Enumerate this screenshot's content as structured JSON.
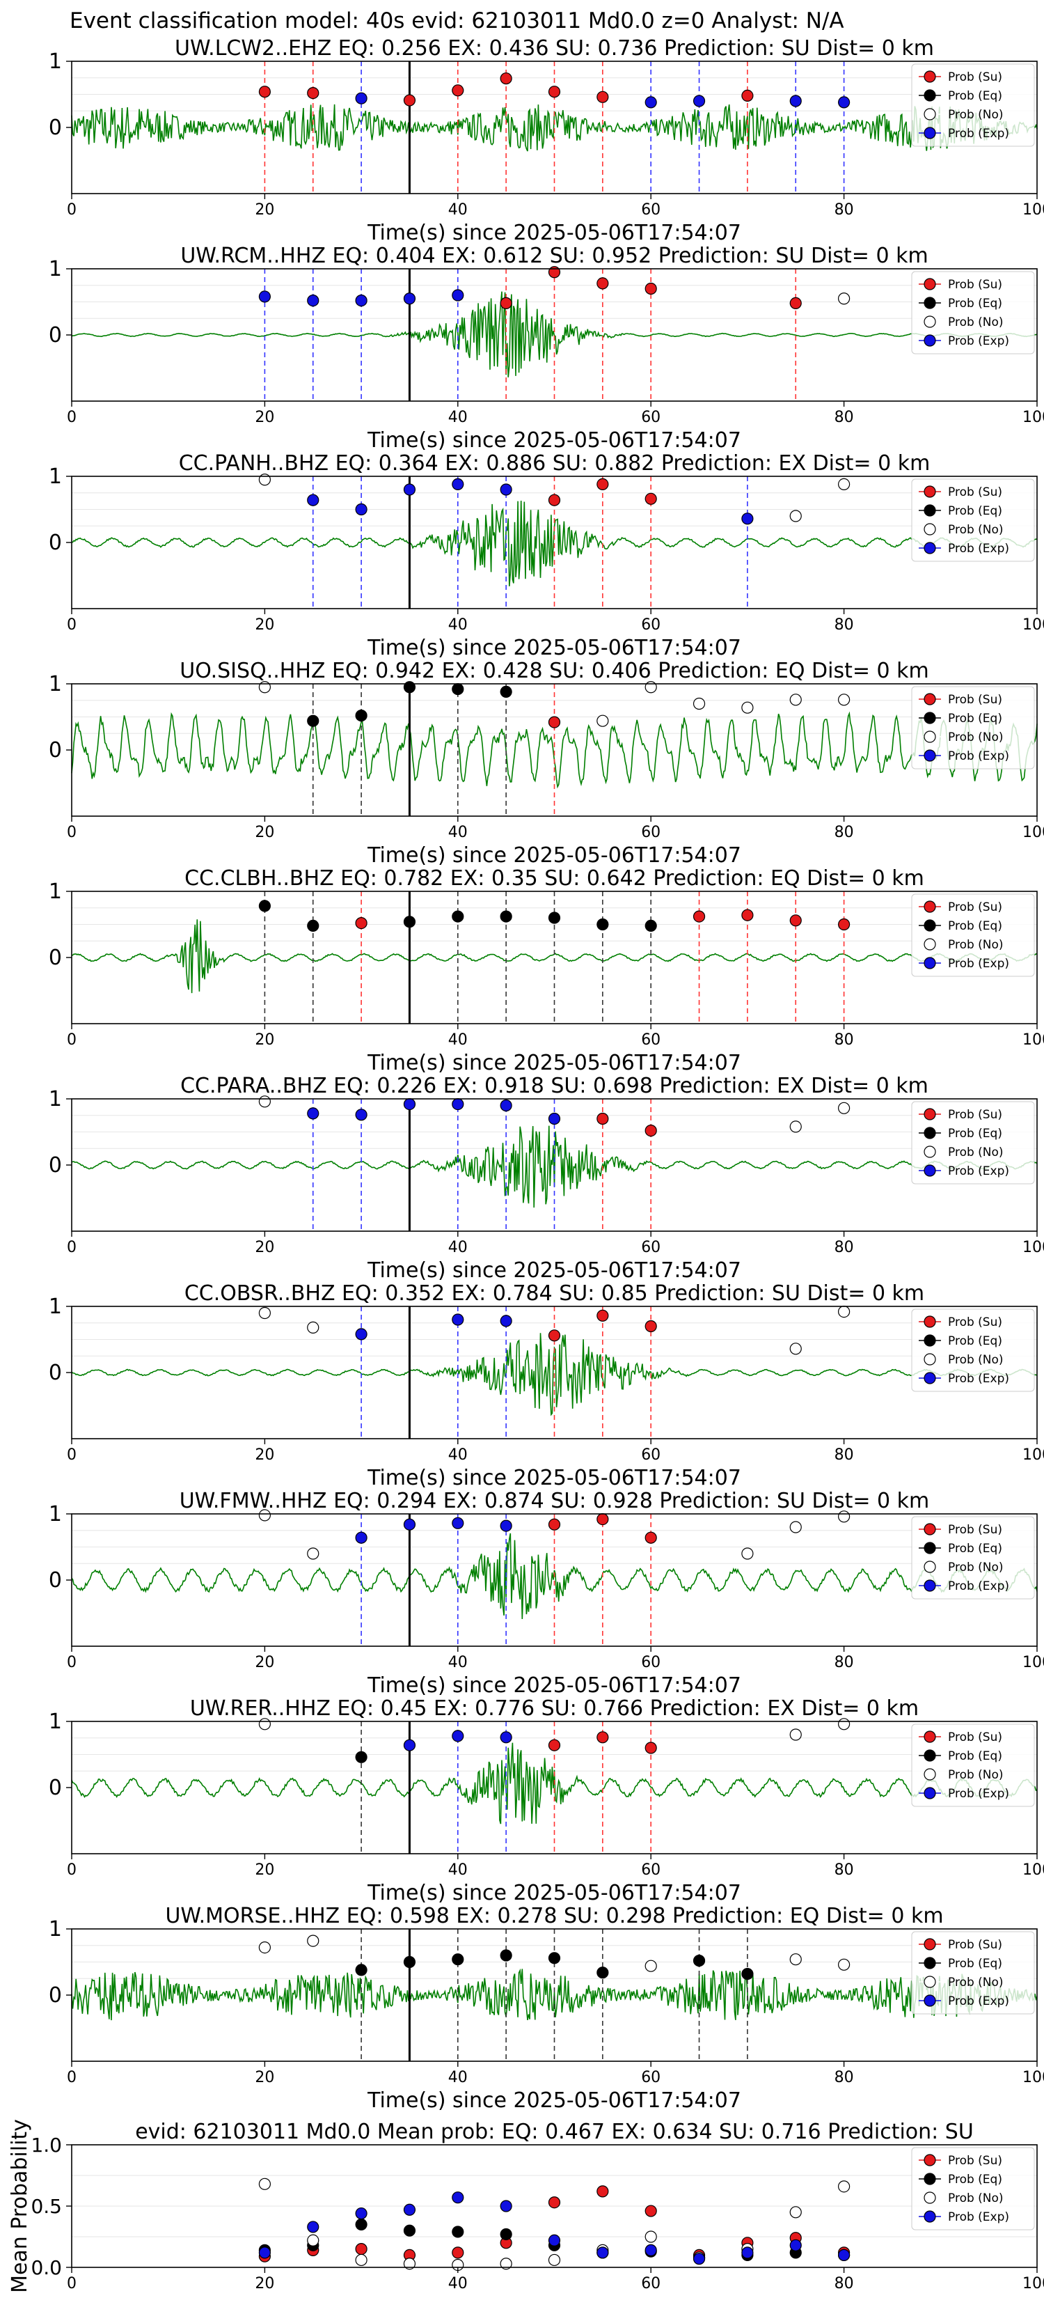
{
  "figure_title": "Event classification model: 40s evid: 62103011 Md0.0 z=0 Analyst: N/A",
  "legend_labels": [
    "Prob (Su)",
    "Prob (Eq)",
    "Prob (No)",
    "Prob (Exp)"
  ],
  "colors": {
    "su": "#e41a1c",
    "eq": "#000000",
    "no": "#ffffff",
    "exp": "#1010e0",
    "trace": "#007f00",
    "grid": "#e6e6e6"
  },
  "chart_data": [
    {
      "type": "scatter",
      "title": "UW.LCW2..EHZ   EQ: 0.256  EX: 0.436  SU: 0.736   Prediction: SU    Dist= 0 km",
      "xlabel": "Time(s) since 2025-05-06T17:54:07",
      "ylabel": "",
      "xlim": [
        0,
        100
      ],
      "ylim": [
        -1,
        1
      ],
      "yticks": [
        "1",
        "0"
      ],
      "xticks": [
        "0",
        "20",
        "40",
        "60",
        "80",
        "100"
      ],
      "event_line_x": 35,
      "trace": {
        "amplitude": 0.45,
        "style": "noisy",
        "burst_center": 40,
        "burst_width": 0
      },
      "points": [
        {
          "x": 20,
          "y": 0.54,
          "class": "su"
        },
        {
          "x": 25,
          "y": 0.52,
          "class": "su"
        },
        {
          "x": 30,
          "y": 0.44,
          "class": "exp"
        },
        {
          "x": 35,
          "y": 0.41,
          "class": "su"
        },
        {
          "x": 40,
          "y": 0.56,
          "class": "su"
        },
        {
          "x": 45,
          "y": 0.74,
          "class": "su"
        },
        {
          "x": 50,
          "y": 0.54,
          "class": "su"
        },
        {
          "x": 55,
          "y": 0.46,
          "class": "su"
        },
        {
          "x": 60,
          "y": 0.38,
          "class": "exp"
        },
        {
          "x": 65,
          "y": 0.4,
          "class": "exp"
        },
        {
          "x": 70,
          "y": 0.48,
          "class": "su"
        },
        {
          "x": 75,
          "y": 0.4,
          "class": "exp"
        },
        {
          "x": 80,
          "y": 0.38,
          "class": "exp"
        }
      ]
    },
    {
      "type": "scatter",
      "title": "UW.RCM..HHZ   EQ: 0.404  EX: 0.612  SU: 0.952   Prediction: SU    Dist= 0 km",
      "xlabel": "Time(s) since 2025-05-06T17:54:07",
      "ylabel": "",
      "xlim": [
        0,
        100
      ],
      "ylim": [
        -1,
        1
      ],
      "yticks": [
        "1",
        "0"
      ],
      "xticks": [
        "0",
        "20",
        "40",
        "60",
        "80",
        "100"
      ],
      "event_line_x": 35,
      "trace": {
        "amplitude": 0.02,
        "style": "burst",
        "burst_center": 45,
        "burst_width": 6
      },
      "points": [
        {
          "x": 20,
          "y": 0.58,
          "class": "exp"
        },
        {
          "x": 25,
          "y": 0.52,
          "class": "exp"
        },
        {
          "x": 30,
          "y": 0.52,
          "class": "exp"
        },
        {
          "x": 35,
          "y": 0.55,
          "class": "exp"
        },
        {
          "x": 40,
          "y": 0.6,
          "class": "exp"
        },
        {
          "x": 45,
          "y": 0.48,
          "class": "su"
        },
        {
          "x": 50,
          "y": 0.95,
          "class": "su"
        },
        {
          "x": 55,
          "y": 0.78,
          "class": "su"
        },
        {
          "x": 60,
          "y": 0.7,
          "class": "su"
        },
        {
          "x": 75,
          "y": 0.48,
          "class": "su"
        },
        {
          "x": 80,
          "y": 0.55,
          "class": "no"
        }
      ]
    },
    {
      "type": "scatter",
      "title": "CC.PANH..BHZ   EQ: 0.364  EX: 0.886  SU: 0.882   Prediction: EX    Dist= 0 km",
      "xlabel": "Time(s) since 2025-05-06T17:54:07",
      "ylabel": "",
      "xlim": [
        0,
        100
      ],
      "ylim": [
        -1,
        1
      ],
      "yticks": [
        "1",
        "0"
      ],
      "xticks": [
        "0",
        "20",
        "40",
        "60",
        "80",
        "100"
      ],
      "event_line_x": 35,
      "trace": {
        "amplitude": 0.06,
        "style": "burst",
        "burst_center": 46,
        "burst_width": 6
      },
      "points": [
        {
          "x": 20,
          "y": 0.95,
          "class": "no"
        },
        {
          "x": 25,
          "y": 0.64,
          "class": "exp"
        },
        {
          "x": 30,
          "y": 0.5,
          "class": "exp"
        },
        {
          "x": 35,
          "y": 0.8,
          "class": "exp"
        },
        {
          "x": 40,
          "y": 0.88,
          "class": "exp"
        },
        {
          "x": 45,
          "y": 0.8,
          "class": "exp"
        },
        {
          "x": 50,
          "y": 0.64,
          "class": "su"
        },
        {
          "x": 55,
          "y": 0.88,
          "class": "su"
        },
        {
          "x": 60,
          "y": 0.66,
          "class": "su"
        },
        {
          "x": 70,
          "y": 0.36,
          "class": "exp"
        },
        {
          "x": 75,
          "y": 0.4,
          "class": "no"
        },
        {
          "x": 80,
          "y": 0.88,
          "class": "no"
        }
      ]
    },
    {
      "type": "scatter",
      "title": "UO.SISQ..HHZ   EQ: 0.942  EX: 0.428  SU: 0.406   Prediction: EQ    Dist= 0 km",
      "xlabel": "Time(s) since 2025-05-06T17:54:07",
      "ylabel": "",
      "xlim": [
        0,
        100
      ],
      "ylim": [
        -1,
        1
      ],
      "yticks": [
        "1",
        "0"
      ],
      "xticks": [
        "0",
        "20",
        "40",
        "60",
        "80",
        "100"
      ],
      "event_line_x": 35,
      "trace": {
        "amplitude": 0.55,
        "style": "wave",
        "burst_center": 40,
        "burst_width": 0
      },
      "points": [
        {
          "x": 20,
          "y": 0.95,
          "class": "no"
        },
        {
          "x": 25,
          "y": 0.44,
          "class": "eq"
        },
        {
          "x": 30,
          "y": 0.52,
          "class": "eq"
        },
        {
          "x": 35,
          "y": 0.95,
          "class": "eq"
        },
        {
          "x": 40,
          "y": 0.92,
          "class": "eq"
        },
        {
          "x": 45,
          "y": 0.88,
          "class": "eq"
        },
        {
          "x": 50,
          "y": 0.42,
          "class": "su"
        },
        {
          "x": 55,
          "y": 0.44,
          "class": "no"
        },
        {
          "x": 60,
          "y": 0.95,
          "class": "no"
        },
        {
          "x": 65,
          "y": 0.7,
          "class": "no"
        },
        {
          "x": 70,
          "y": 0.64,
          "class": "no"
        },
        {
          "x": 75,
          "y": 0.76,
          "class": "no"
        },
        {
          "x": 80,
          "y": 0.76,
          "class": "no"
        }
      ]
    },
    {
      "type": "scatter",
      "title": "CC.CLBH..BHZ   EQ: 0.782  EX: 0.35  SU: 0.642   Prediction: EQ    Dist= 0 km",
      "xlabel": "Time(s) since 2025-05-06T17:54:07",
      "ylabel": "",
      "xlim": [
        0,
        100
      ],
      "ylim": [
        -1,
        1
      ],
      "yticks": [
        "1",
        "0"
      ],
      "xticks": [
        "0",
        "20",
        "40",
        "60",
        "80",
        "100"
      ],
      "event_line_x": 35,
      "trace": {
        "amplitude": 0.05,
        "style": "burst",
        "burst_center": 13,
        "burst_width": 1.5
      },
      "points": [
        {
          "x": 20,
          "y": 0.78,
          "class": "eq"
        },
        {
          "x": 25,
          "y": 0.48,
          "class": "eq"
        },
        {
          "x": 30,
          "y": 0.52,
          "class": "su"
        },
        {
          "x": 35,
          "y": 0.54,
          "class": "eq"
        },
        {
          "x": 40,
          "y": 0.62,
          "class": "eq"
        },
        {
          "x": 45,
          "y": 0.62,
          "class": "eq"
        },
        {
          "x": 50,
          "y": 0.6,
          "class": "eq"
        },
        {
          "x": 55,
          "y": 0.5,
          "class": "eq"
        },
        {
          "x": 60,
          "y": 0.48,
          "class": "eq"
        },
        {
          "x": 65,
          "y": 0.62,
          "class": "su"
        },
        {
          "x": 70,
          "y": 0.64,
          "class": "su"
        },
        {
          "x": 75,
          "y": 0.56,
          "class": "su"
        },
        {
          "x": 80,
          "y": 0.5,
          "class": "su"
        }
      ]
    },
    {
      "type": "scatter",
      "title": "CC.PARA..BHZ   EQ: 0.226  EX: 0.918  SU: 0.698   Prediction: EX    Dist= 0 km",
      "xlabel": "Time(s) since 2025-05-06T17:54:07",
      "ylabel": "",
      "xlim": [
        0,
        100
      ],
      "ylim": [
        -1,
        1
      ],
      "yticks": [
        "1",
        "0"
      ],
      "xticks": [
        "0",
        "20",
        "40",
        "60",
        "80",
        "100"
      ],
      "event_line_x": 35,
      "trace": {
        "amplitude": 0.05,
        "style": "burst",
        "burst_center": 48,
        "burst_width": 6
      },
      "points": [
        {
          "x": 20,
          "y": 0.96,
          "class": "no"
        },
        {
          "x": 25,
          "y": 0.78,
          "class": "exp"
        },
        {
          "x": 30,
          "y": 0.76,
          "class": "exp"
        },
        {
          "x": 35,
          "y": 0.92,
          "class": "exp"
        },
        {
          "x": 40,
          "y": 0.92,
          "class": "exp"
        },
        {
          "x": 45,
          "y": 0.9,
          "class": "exp"
        },
        {
          "x": 50,
          "y": 0.7,
          "class": "exp"
        },
        {
          "x": 55,
          "y": 0.7,
          "class": "su"
        },
        {
          "x": 60,
          "y": 0.52,
          "class": "su"
        },
        {
          "x": 75,
          "y": 0.58,
          "class": "no"
        },
        {
          "x": 80,
          "y": 0.86,
          "class": "no"
        }
      ]
    },
    {
      "type": "scatter",
      "title": "CC.OBSR..BHZ   EQ: 0.352  EX: 0.784  SU: 0.85   Prediction: SU    Dist= 0 km",
      "xlabel": "Time(s) since 2025-05-06T17:54:07",
      "ylabel": "",
      "xlim": [
        0,
        100
      ],
      "ylim": [
        -1,
        1
      ],
      "yticks": [
        "1",
        "0"
      ],
      "xticks": [
        "0",
        "20",
        "40",
        "60",
        "80",
        "100"
      ],
      "event_line_x": 35,
      "trace": {
        "amplitude": 0.04,
        "style": "burst",
        "burst_center": 50,
        "burst_width": 7
      },
      "points": [
        {
          "x": 20,
          "y": 0.9,
          "class": "no"
        },
        {
          "x": 25,
          "y": 0.68,
          "class": "no"
        },
        {
          "x": 30,
          "y": 0.58,
          "class": "exp"
        },
        {
          "x": 40,
          "y": 0.8,
          "class": "exp"
        },
        {
          "x": 45,
          "y": 0.78,
          "class": "exp"
        },
        {
          "x": 50,
          "y": 0.56,
          "class": "su"
        },
        {
          "x": 55,
          "y": 0.86,
          "class": "su"
        },
        {
          "x": 60,
          "y": 0.7,
          "class": "su"
        },
        {
          "x": 75,
          "y": 0.36,
          "class": "no"
        },
        {
          "x": 80,
          "y": 0.92,
          "class": "no"
        }
      ]
    },
    {
      "type": "scatter",
      "title": "UW.FMW..HHZ   EQ: 0.294  EX: 0.874  SU: 0.928   Prediction: SU    Dist= 0 km",
      "xlabel": "Time(s) since 2025-05-06T17:54:07",
      "ylabel": "",
      "xlim": [
        0,
        100
      ],
      "ylim": [
        -1,
        1
      ],
      "yticks": [
        "1",
        "0"
      ],
      "xticks": [
        "0",
        "20",
        "40",
        "60",
        "80",
        "100"
      ],
      "event_line_x": 35,
      "trace": {
        "amplitude": 0.15,
        "style": "burst",
        "burst_center": 46,
        "burst_width": 4
      },
      "points": [
        {
          "x": 20,
          "y": 0.98,
          "class": "no"
        },
        {
          "x": 25,
          "y": 0.4,
          "class": "no"
        },
        {
          "x": 30,
          "y": 0.64,
          "class": "exp"
        },
        {
          "x": 35,
          "y": 0.84,
          "class": "exp"
        },
        {
          "x": 40,
          "y": 0.86,
          "class": "exp"
        },
        {
          "x": 45,
          "y": 0.82,
          "class": "exp"
        },
        {
          "x": 50,
          "y": 0.84,
          "class": "su"
        },
        {
          "x": 55,
          "y": 0.92,
          "class": "su"
        },
        {
          "x": 60,
          "y": 0.64,
          "class": "su"
        },
        {
          "x": 70,
          "y": 0.4,
          "class": "no"
        },
        {
          "x": 75,
          "y": 0.8,
          "class": "no"
        },
        {
          "x": 80,
          "y": 0.96,
          "class": "no"
        }
      ]
    },
    {
      "type": "scatter",
      "title": "UW.RER..HHZ   EQ: 0.45  EX: 0.776  SU: 0.766   Prediction: EX    Dist= 0 km",
      "xlabel": "Time(s) since 2025-05-06T17:54:07",
      "ylabel": "",
      "xlim": [
        0,
        100
      ],
      "ylim": [
        -1,
        1
      ],
      "yticks": [
        "1",
        "0"
      ],
      "xticks": [
        "0",
        "20",
        "40",
        "60",
        "80",
        "100"
      ],
      "event_line_x": 35,
      "trace": {
        "amplitude": 0.12,
        "style": "burst",
        "burst_center": 46,
        "burst_width": 4
      },
      "points": [
        {
          "x": 20,
          "y": 0.96,
          "class": "no"
        },
        {
          "x": 30,
          "y": 0.46,
          "class": "eq"
        },
        {
          "x": 35,
          "y": 0.64,
          "class": "exp"
        },
        {
          "x": 40,
          "y": 0.78,
          "class": "exp"
        },
        {
          "x": 45,
          "y": 0.76,
          "class": "exp"
        },
        {
          "x": 50,
          "y": 0.64,
          "class": "su"
        },
        {
          "x": 55,
          "y": 0.76,
          "class": "su"
        },
        {
          "x": 60,
          "y": 0.6,
          "class": "su"
        },
        {
          "x": 75,
          "y": 0.8,
          "class": "no"
        },
        {
          "x": 80,
          "y": 0.96,
          "class": "no"
        }
      ]
    },
    {
      "type": "scatter",
      "title": "UW.MORSE..HHZ   EQ: 0.598  EX: 0.278  SU: 0.298   Prediction: EQ    Dist= 0 km",
      "xlabel": "Time(s) since 2025-05-06T17:54:07",
      "ylabel": "",
      "xlim": [
        0,
        100
      ],
      "ylim": [
        -1,
        1
      ],
      "yticks": [
        "1",
        "0"
      ],
      "xticks": [
        "0",
        "20",
        "40",
        "60",
        "80",
        "100"
      ],
      "event_line_x": 35,
      "trace": {
        "amplitude": 0.5,
        "style": "noisy",
        "burst_center": 40,
        "burst_width": 0
      },
      "points": [
        {
          "x": 20,
          "y": 0.72,
          "class": "no"
        },
        {
          "x": 25,
          "y": 0.82,
          "class": "no"
        },
        {
          "x": 30,
          "y": 0.38,
          "class": "eq"
        },
        {
          "x": 35,
          "y": 0.5,
          "class": "eq"
        },
        {
          "x": 40,
          "y": 0.54,
          "class": "eq"
        },
        {
          "x": 45,
          "y": 0.6,
          "class": "eq"
        },
        {
          "x": 50,
          "y": 0.56,
          "class": "eq"
        },
        {
          "x": 55,
          "y": 0.34,
          "class": "eq"
        },
        {
          "x": 60,
          "y": 0.44,
          "class": "no"
        },
        {
          "x": 65,
          "y": 0.52,
          "class": "eq"
        },
        {
          "x": 70,
          "y": 0.32,
          "class": "eq"
        },
        {
          "x": 75,
          "y": 0.54,
          "class": "no"
        },
        {
          "x": 80,
          "y": 0.46,
          "class": "no"
        }
      ]
    },
    {
      "type": "scatter",
      "title": "evid: 62103011  Md0.0   Mean prob:   EQ: 0.467  EX: 0.634  SU: 0.716   Prediction: SU",
      "xlabel": "",
      "ylabel": "Mean Probability",
      "xlim": [
        0,
        100
      ],
      "ylim": [
        0,
        1
      ],
      "yticks": [
        "1.0",
        "0.5",
        "0.0"
      ],
      "xticks": [
        "0",
        "20",
        "40",
        "60",
        "80",
        "100"
      ],
      "series": [
        {
          "name": "Prob (Su)",
          "class": "su",
          "x": [
            20,
            25,
            30,
            35,
            40,
            45,
            50,
            55,
            60,
            65,
            70,
            75,
            80
          ],
          "y": [
            0.09,
            0.14,
            0.15,
            0.1,
            0.12,
            0.2,
            0.53,
            0.62,
            0.46,
            0.1,
            0.2,
            0.24,
            0.12
          ]
        },
        {
          "name": "Prob (Eq)",
          "class": "eq",
          "x": [
            20,
            25,
            30,
            35,
            40,
            45,
            50,
            55,
            60,
            65,
            70,
            75,
            80
          ],
          "y": [
            0.14,
            0.18,
            0.35,
            0.3,
            0.29,
            0.27,
            0.18,
            0.12,
            0.13,
            0.08,
            0.1,
            0.12,
            0.1
          ]
        },
        {
          "name": "Prob (No)",
          "class": "no",
          "x": [
            20,
            25,
            30,
            35,
            40,
            45,
            50,
            55,
            60,
            65,
            70,
            75,
            80
          ],
          "y": [
            0.68,
            0.22,
            0.06,
            0.03,
            0.02,
            0.03,
            0.06,
            0.14,
            0.25,
            0.08,
            0.15,
            0.45,
            0.66
          ]
        },
        {
          "name": "Prob (Exp)",
          "class": "exp",
          "x": [
            20,
            25,
            30,
            35,
            40,
            45,
            50,
            55,
            60,
            65,
            70,
            75,
            80
          ],
          "y": [
            0.12,
            0.33,
            0.44,
            0.47,
            0.57,
            0.5,
            0.22,
            0.12,
            0.14,
            0.07,
            0.12,
            0.18,
            0.1
          ]
        }
      ]
    }
  ]
}
